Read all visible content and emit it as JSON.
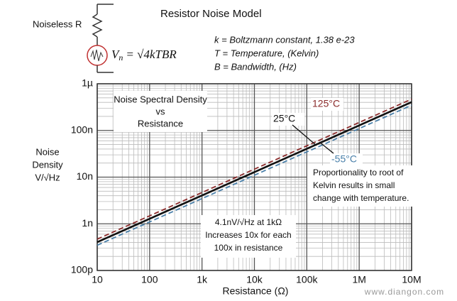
{
  "header": {
    "title": "Resistor Noise Model",
    "component": "Noiseless  R",
    "formula": {
      "symbol": "V",
      "subscript": "n",
      "expression": "= √4kTBR"
    },
    "definitions": [
      "k = Boltzmann constant,  1.38 e-23",
      "T = Temperature, (Kelvin)",
      "B = Bandwidth, (Hz)"
    ]
  },
  "chart_data": {
    "type": "line",
    "log_x": true,
    "log_y": true,
    "grid": true,
    "minor_grid": true,
    "title_lines": [
      "Noise Spectral Density",
      "vs",
      "Resistance"
    ],
    "y_label_lines": [
      "Noise",
      "Density",
      "V/√Hz"
    ],
    "x_label": "Resistance  (Ω)",
    "x": [
      10,
      100,
      1000,
      10000,
      100000,
      1000000,
      10000000
    ],
    "xlim": [
      10,
      10000000
    ],
    "xticks": [
      10,
      100,
      {
        "value": 1000,
        "label": "1k"
      },
      {
        "value": 10000,
        "label": "10k"
      },
      {
        "value": 100000,
        "label": "100k"
      },
      {
        "value": 1000000,
        "label": "1M"
      },
      {
        "value": 10000000,
        "label": "10M"
      }
    ],
    "ylim": [
      1e-10,
      1e-06
    ],
    "yticks": [
      {
        "value": 1e-10,
        "label": "100p"
      },
      {
        "value": 1e-09,
        "label": "1n"
      },
      {
        "value": 1e-08,
        "label": "10n"
      },
      {
        "value": 1e-07,
        "label": "100n"
      },
      {
        "value": 1e-06,
        "label": "1µ"
      }
    ],
    "series": [
      {
        "name": "125°C",
        "color": "#8b2b2b",
        "dashed": true,
        "values": [
          4.688e-10,
          1.482e-09,
          4.688e-09,
          1.482e-08,
          4.688e-08,
          1.482e-07,
          4.688e-07
        ]
      },
      {
        "name": "-55°C",
        "color": "#4a80aa",
        "dashed": true,
        "values": [
          3.47e-10,
          1.097e-09,
          3.47e-09,
          1.097e-08,
          3.47e-08,
          1.097e-07,
          3.47e-07
        ]
      },
      {
        "name": "25°C",
        "color": "#111111",
        "dashed": false,
        "values": [
          4.057e-10,
          1.283e-09,
          4.057e-09,
          1.283e-08,
          4.057e-08,
          1.283e-07,
          4.057e-07
        ]
      }
    ],
    "annotations": [
      [
        "Proportionality to root of",
        "Kelvin results in small",
        "change with temperature."
      ],
      [
        "4.1nV/√Hz at 1kΩ",
        "Increases 10x for each",
        "100x in resistance"
      ]
    ]
  },
  "watermark": "www.diangon.com"
}
